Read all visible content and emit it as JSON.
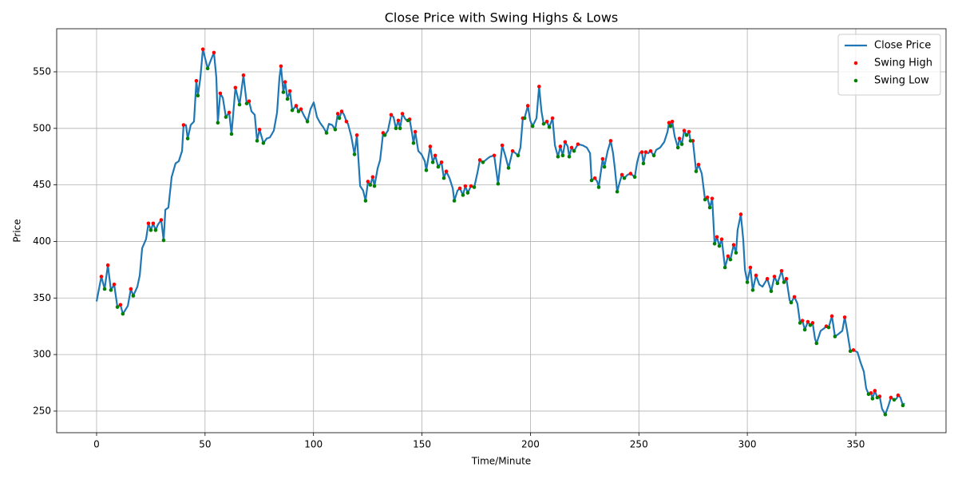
{
  "chart_data": {
    "type": "line",
    "title": "Close Price with Swing Highs & Lows",
    "xlabel": "Time/Minute",
    "ylabel": "Price",
    "xlim": [
      -18.4,
      391.6
    ],
    "ylim": [
      230.9,
      588.1
    ],
    "xticks": [
      0,
      50,
      100,
      150,
      200,
      250,
      300,
      350
    ],
    "yticks": [
      250,
      300,
      350,
      400,
      450,
      500,
      550
    ],
    "grid": true,
    "legend": "upper right",
    "series": [
      {
        "name": "Close Price",
        "type": "line",
        "color": "#1f77b4",
        "x": [
          0,
          2.2,
          3.7,
          5.2,
          6.6,
          8.1,
          9.6,
          11,
          12.1,
          14.4,
          15.8,
          16.9,
          18.8,
          19.9,
          21,
          22.8,
          23.9,
          25,
          26.1,
          27.2,
          28.3,
          29.8,
          30.9,
          31.7,
          33.1,
          34.6,
          36.4,
          37.9,
          39.4,
          40.1,
          41.2,
          42,
          43.4,
          44.9,
          46,
          46.7,
          47.8,
          49,
          51.2,
          52.6,
          54.1,
          55.2,
          55.9,
          57,
          58.2,
          59.6,
          61.1,
          62.2,
          64,
          65.9,
          67.7,
          69.2,
          70.3,
          71.4,
          72.9,
          74,
          75.1,
          76.9,
          78.4,
          79.9,
          81.7,
          83.2,
          84.3,
          85,
          86.1,
          86.9,
          88,
          89.1,
          90.2,
          92,
          93.1,
          94.2,
          95.7,
          97.2,
          98.6,
          100.1,
          101.6,
          103,
          104.5,
          106,
          107.1,
          108.6,
          110,
          111.2,
          111.9,
          113,
          114.1,
          115.2,
          115.9,
          117.4,
          118.9,
          120,
          121.5,
          122.9,
          124,
          125.1,
          126.2,
          127.3,
          128.1,
          129.6,
          130.7,
          132.1,
          132.9,
          134.3,
          135.8,
          136.9,
          138,
          139.1,
          139.9,
          141,
          142.4,
          143.5,
          144.3,
          145.4,
          146.1,
          146.9,
          148.3,
          149.8,
          151.3,
          152,
          153.8,
          155,
          156.1,
          157.5,
          159,
          160.1,
          161.2,
          162.7,
          164.2,
          164.9,
          166.4,
          167.5,
          168.9,
          170,
          171.1,
          172.6,
          174.1,
          175.6,
          176.7,
          178.1,
          180,
          181.4,
          183.3,
          185.1,
          187,
          188.4,
          189.9,
          191.8,
          193.2,
          194.3,
          195.4,
          196.5,
          197.3,
          198.8,
          199.9,
          201,
          202.8,
          204,
          205.1,
          206.1,
          207.6,
          208.7,
          210.2,
          211.3,
          212.7,
          213.8,
          214.9,
          216,
          217.2,
          217.9,
          219,
          220.1,
          221.9,
          224.1,
          226,
          227.5,
          228.2,
          229.7,
          230.8,
          231.5,
          233.3,
          234.1,
          235.6,
          237,
          238.1,
          238.9,
          240,
          241.1,
          242.2,
          243.3,
          244.8,
          246.2,
          248.1,
          249.2,
          250.3,
          251.4,
          252.1,
          253.2,
          254.3,
          255.4,
          256.9,
          258,
          259.8,
          261.7,
          263.2,
          263.9,
          264.6,
          265.4,
          266.5,
          268,
          268.7,
          269.8,
          270.9,
          272,
          273.1,
          273.8,
          274.9,
          276.4,
          277.5,
          279,
          280.5,
          281.6,
          282.7,
          283.8,
          284.9,
          286,
          287.1,
          288.2,
          289.7,
          291.1,
          292.2,
          293.7,
          294.8,
          295.5,
          297,
          298.1,
          298.9,
          300,
          301.4,
          302.5,
          304,
          305.5,
          307,
          309.2,
          311,
          312.5,
          313.9,
          315.8,
          316.9,
          318,
          319.5,
          320.2,
          321.7,
          323.1,
          324.3,
          325.4,
          326.5,
          327.9,
          329,
          330.1,
          331.2,
          331.9,
          333.8,
          335.3,
          336.4,
          337.5,
          339,
          340.4,
          341.9,
          343.8,
          344.9,
          346,
          347.5,
          348.9,
          350.8,
          352.2,
          353.7,
          354.8,
          355.9,
          357,
          357.7,
          358.8,
          359.9,
          361,
          362.1,
          363.6,
          365.1,
          366.2,
          367.7,
          368.8,
          369.5,
          370.6,
          371.7,
          372.4
        ],
        "values": [
          347,
          369,
          358,
          379,
          357,
          362,
          342,
          344,
          336,
          343,
          358,
          352,
          360,
          370,
          394,
          402,
          416,
          410,
          416,
          410,
          415,
          419,
          401,
          428,
          430,
          457,
          469,
          471,
          480,
          503,
          503,
          491,
          503,
          506,
          542,
          529,
          544,
          570,
          553,
          560,
          567,
          545,
          505,
          531,
          527,
          510,
          514,
          495,
          536,
          521,
          547,
          522,
          524,
          515,
          512,
          489,
          499,
          487,
          491,
          492,
          498,
          514,
          545,
          555,
          532,
          541,
          526,
          533,
          516,
          520,
          515,
          517,
          511,
          506,
          517,
          523,
          510,
          505,
          501,
          496,
          504,
          503,
          499,
          513,
          509,
          515,
          512,
          506,
          504,
          493,
          477,
          494,
          449,
          445,
          436,
          453,
          450,
          457,
          449,
          465,
          472,
          496,
          494,
          498,
          512,
          510,
          500,
          507,
          500,
          513,
          508,
          507,
          508,
          496,
          487,
          497,
          480,
          477,
          471,
          463,
          484,
          470,
          476,
          466,
          470,
          456,
          462,
          456,
          447,
          436,
          445,
          447,
          441,
          449,
          443,
          449,
          448,
          461,
          472,
          470,
          473,
          475,
          476,
          451,
          485,
          476,
          465,
          480,
          478,
          476,
          483,
          509,
          509,
          520,
          507,
          502,
          509,
          537,
          515,
          504,
          506,
          501,
          509,
          485,
          475,
          484,
          476,
          488,
          484,
          475,
          483,
          480,
          486,
          485,
          483,
          478,
          454,
          456,
          453,
          448,
          473,
          466,
          480,
          489,
          478,
          465,
          444,
          452,
          459,
          456,
          459,
          460,
          457,
          470,
          478,
          479,
          469,
          479,
          478,
          480,
          476,
          481,
          483,
          488,
          497,
          505,
          502,
          506,
          493,
          483,
          491,
          486,
          498,
          494,
          497,
          489,
          489,
          462,
          468,
          460,
          437,
          439,
          430,
          438,
          398,
          404,
          396,
          402,
          377,
          387,
          384,
          397,
          390,
          410,
          424,
          402,
          375,
          364,
          377,
          357,
          370,
          362,
          360,
          367,
          356,
          369,
          363,
          374,
          364,
          367,
          348,
          346,
          351,
          345,
          328,
          330,
          322,
          329,
          326,
          328,
          314,
          310,
          321,
          323,
          325,
          324,
          334,
          316,
          318,
          321,
          333,
          321,
          303,
          304,
          302,
          293,
          285,
          270,
          265,
          266,
          261,
          268,
          262,
          263,
          252,
          247,
          255,
          262,
          260,
          261,
          264,
          262,
          255,
          257
        ]
      },
      {
        "name": "Swing High",
        "type": "scatter",
        "color": "#ff0000",
        "x": [
          2.2,
          5.2,
          8.1,
          11,
          15.8,
          23.9,
          26.1,
          29.8,
          40.1,
          46,
          49,
          54.1,
          57,
          61.1,
          64,
          67.7,
          70.3,
          75.1,
          85,
          86.9,
          89.1,
          92,
          94.2,
          111.2,
          113,
          115.2,
          120,
          125.1,
          127.3,
          132.1,
          135.8,
          139.1,
          141,
          144.3,
          146.9,
          153.8,
          156.1,
          159,
          161.2,
          167.5,
          170,
          172.6,
          176.7,
          183.3,
          187,
          191.8,
          196.5,
          198.8,
          204,
          207.6,
          210.2,
          213.8,
          216,
          219,
          221.9,
          229.7,
          233.3,
          237,
          242.2,
          246.2,
          251.4,
          253.2,
          255.4,
          263.9,
          265.4,
          268.7,
          270.9,
          273.1,
          274.9,
          277.5,
          281.6,
          283.8,
          286,
          288.2,
          291.1,
          293.7,
          297,
          301.4,
          304,
          309.2,
          312.5,
          315.8,
          318,
          321.7,
          325.4,
          327.9,
          330.1,
          336.4,
          339,
          344.9,
          348.9,
          357,
          358.8,
          361,
          366.2,
          369.5
        ],
        "values": [
          369,
          379,
          362,
          344,
          358,
          416,
          416,
          419,
          503,
          542,
          570,
          567,
          531,
          514,
          536,
          547,
          524,
          499,
          555,
          541,
          533,
          520,
          517,
          513,
          515,
          506,
          494,
          453,
          457,
          496,
          512,
          507,
          513,
          508,
          497,
          484,
          476,
          470,
          462,
          447,
          449,
          449,
          472,
          476,
          485,
          480,
          509,
          520,
          537,
          506,
          509,
          484,
          488,
          483,
          486,
          456,
          473,
          489,
          459,
          460,
          479,
          479,
          480,
          505,
          506,
          491,
          498,
          497,
          489,
          468,
          439,
          438,
          404,
          402,
          387,
          397,
          424,
          377,
          370,
          367,
          369,
          374,
          367,
          351,
          330,
          329,
          328,
          325,
          334,
          333,
          304,
          266,
          268,
          263,
          262,
          264
        ]
      },
      {
        "name": "Swing Low",
        "type": "scatter",
        "color": "#008000",
        "x": [
          3.7,
          6.6,
          9.6,
          12.1,
          16.9,
          25,
          27.2,
          30.9,
          42,
          46.7,
          51.2,
          55.9,
          59.6,
          62.2,
          65.9,
          69.2,
          74,
          76.9,
          86.1,
          88,
          90.2,
          93.1,
          97.2,
          106,
          110,
          111.9,
          118.9,
          124,
          126.2,
          128.1,
          132.9,
          138,
          139.9,
          143.5,
          146.1,
          152,
          155,
          157.5,
          160.1,
          164.9,
          168.9,
          171.1,
          174.1,
          178.1,
          185.1,
          189.9,
          194.3,
          197.3,
          201,
          206.1,
          208.7,
          212.7,
          214.9,
          217.9,
          220.1,
          228.2,
          231.5,
          234.1,
          240,
          243.3,
          248.1,
          252.1,
          256.9,
          264.6,
          268,
          269.8,
          272,
          273.8,
          276.4,
          280.5,
          282.7,
          284.9,
          287.1,
          289.7,
          292.2,
          294.8,
          300,
          302.5,
          311,
          313.9,
          316.9,
          320.2,
          324.3,
          326.5,
          329,
          331.9,
          337.5,
          340.4,
          347.5,
          355.9,
          357.7,
          359.9,
          363.6,
          367.7,
          371.7
        ],
        "values": [
          358,
          357,
          342,
          336,
          352,
          410,
          410,
          401,
          491,
          529,
          553,
          505,
          510,
          495,
          521,
          522,
          489,
          487,
          532,
          526,
          516,
          515,
          506,
          496,
          499,
          509,
          477,
          436,
          450,
          449,
          494,
          500,
          500,
          507,
          487,
          463,
          470,
          466,
          456,
          436,
          441,
          443,
          448,
          470,
          451,
          465,
          476,
          509,
          502,
          504,
          501,
          475,
          476,
          475,
          480,
          454,
          448,
          466,
          444,
          456,
          457,
          469,
          476,
          502,
          483,
          486,
          494,
          489,
          462,
          437,
          430,
          398,
          396,
          377,
          384,
          390,
          364,
          357,
          356,
          363,
          364,
          346,
          328,
          322,
          326,
          310,
          324,
          316,
          303,
          265,
          261,
          262,
          247,
          260,
          255
        ]
      }
    ]
  }
}
